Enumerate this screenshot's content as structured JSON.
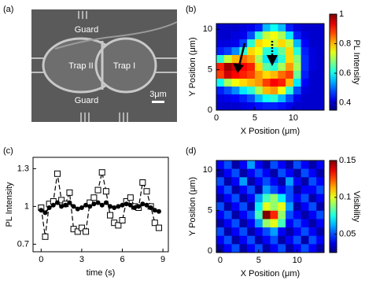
{
  "chart_data": [
    {
      "type": "image",
      "panel_label": "(a)",
      "annotations": [
        "Guard",
        "Trap II",
        "Trap I",
        "Guard",
        "3μm"
      ]
    },
    {
      "type": "heatmap",
      "panel_label": "(b)",
      "xlabel": "X Position (μm)",
      "ylabel": "Y Position (μm)",
      "colorbar_label": "PL Intensity",
      "xlim": [
        0,
        14
      ],
      "ylim": [
        0,
        10.7
      ],
      "xticks": [
        0,
        5,
        10
      ],
      "yticks": [
        0,
        5,
        10
      ],
      "clim": [
        0.35,
        1.0
      ],
      "cticks": [
        0.4,
        0.6,
        0.8,
        1
      ],
      "z": [
        [
          0.4,
          0.4,
          0.4,
          0.41,
          0.42,
          0.45,
          0.55,
          0.6,
          0.55,
          0.45,
          0.41,
          0.4,
          0.4,
          0.4
        ],
        [
          0.4,
          0.4,
          0.41,
          0.42,
          0.48,
          0.62,
          0.72,
          0.75,
          0.7,
          0.58,
          0.45,
          0.41,
          0.4,
          0.4
        ],
        [
          0.41,
          0.41,
          0.42,
          0.47,
          0.62,
          0.78,
          0.76,
          0.72,
          0.78,
          0.72,
          0.55,
          0.43,
          0.4,
          0.4
        ],
        [
          0.45,
          0.47,
          0.52,
          0.62,
          0.78,
          0.75,
          0.62,
          0.6,
          0.66,
          0.78,
          0.62,
          0.45,
          0.41,
          0.4
        ],
        [
          0.62,
          0.72,
          0.8,
          0.85,
          0.82,
          0.7,
          0.58,
          0.55,
          0.62,
          0.78,
          0.68,
          0.46,
          0.41,
          0.4
        ],
        [
          0.9,
          0.98,
          0.95,
          0.92,
          0.9,
          0.78,
          0.65,
          0.62,
          0.7,
          0.82,
          0.7,
          0.46,
          0.41,
          0.4
        ],
        [
          0.88,
          0.95,
          0.92,
          0.9,
          0.88,
          0.82,
          0.78,
          0.8,
          0.85,
          0.88,
          0.66,
          0.45,
          0.4,
          0.4
        ],
        [
          0.6,
          0.7,
          0.75,
          0.78,
          0.8,
          0.82,
          0.88,
          0.92,
          0.9,
          0.8,
          0.58,
          0.43,
          0.4,
          0.4
        ],
        [
          0.45,
          0.48,
          0.52,
          0.58,
          0.62,
          0.7,
          0.8,
          0.82,
          0.75,
          0.62,
          0.48,
          0.41,
          0.4,
          0.4
        ],
        [
          0.41,
          0.42,
          0.43,
          0.45,
          0.48,
          0.55,
          0.6,
          0.62,
          0.55,
          0.48,
          0.42,
          0.4,
          0.4,
          0.4
        ],
        [
          0.4,
          0.4,
          0.4,
          0.41,
          0.42,
          0.44,
          0.45,
          0.45,
          0.44,
          0.42,
          0.4,
          0.4,
          0.4,
          0.4
        ]
      ]
    },
    {
      "type": "line",
      "panel_label": "(c)",
      "xlabel": "time (s)",
      "ylabel": "PL Intensity",
      "xlim": [
        -0.6,
        9.4
      ],
      "ylim": [
        0.64,
        1.39
      ],
      "xticks": [
        0,
        3,
        6,
        9
      ],
      "yticks": [
        0.7,
        1,
        1.3
      ],
      "x": [
        0,
        0.3,
        0.6,
        0.9,
        1.2,
        1.5,
        1.8,
        2.1,
        2.4,
        2.7,
        3,
        3.3,
        3.6,
        3.9,
        4.2,
        4.5,
        4.8,
        5.1,
        5.4,
        5.7,
        6,
        6.3,
        6.6,
        6.9,
        7.2,
        7.5,
        7.8,
        8.1,
        8.4,
        8.7
      ],
      "series": [
        {
          "color": "#000000",
          "marker": "square",
          "dashed": true,
          "values": [
            0.99,
            0.76,
            1.02,
            1.04,
            1.26,
            1.05,
            1.02,
            1.11,
            0.82,
            0.8,
            0.83,
            0.8,
            1.03,
            1.07,
            1.13,
            1.27,
            1.12,
            0.93,
            0.87,
            0.85,
            0.89,
            1.04,
            1.07,
            1.0,
            0.99,
            1.19,
            1.12,
            1.0,
            0.87,
            0.83
          ]
        },
        {
          "color": "#000000",
          "marker": "circle",
          "dashed": false,
          "values": [
            0.97,
            0.95,
            0.99,
            1.01,
            1.03,
            1.0,
            1.01,
            1.03,
            1.0,
            0.98,
            0.99,
            1.01,
            1.0,
            1.02,
            1.03,
            1.01,
            1.03,
            1.0,
            0.99,
            1.0,
            1.01,
            1.02,
            1.01,
            0.99,
            1.0,
            1.02,
            1.01,
            0.99,
            0.97,
            0.96
          ]
        }
      ]
    },
    {
      "type": "heatmap",
      "panel_label": "(d)",
      "xlabel": "X Position (μm)",
      "ylabel": "Y Position (μm)",
      "colorbar_label": "Visibility",
      "xlim": [
        -0.5,
        13.5
      ],
      "ylim": [
        -0.2,
        11.2
      ],
      "xticks": [
        0,
        5,
        10
      ],
      "yticks": [
        0,
        5,
        10
      ],
      "clim": [
        0.025,
        0.15
      ],
      "cticks": [
        0.05,
        0.1,
        0.15
      ],
      "z": [
        [
          0.04,
          0.05,
          0.03,
          0.04,
          0.06,
          0.04,
          0.03,
          0.05,
          0.04,
          0.03,
          0.05,
          0.04,
          0.03,
          0.04
        ],
        [
          0.03,
          0.04,
          0.05,
          0.03,
          0.04,
          0.05,
          0.04,
          0.03,
          0.05,
          0.04,
          0.03,
          0.05,
          0.04,
          0.03
        ],
        [
          0.05,
          0.03,
          0.04,
          0.06,
          0.03,
          0.04,
          0.05,
          0.04,
          0.03,
          0.06,
          0.04,
          0.03,
          0.05,
          0.04
        ],
        [
          0.04,
          0.05,
          0.03,
          0.04,
          0.05,
          0.03,
          0.06,
          0.05,
          0.04,
          0.05,
          0.03,
          0.04,
          0.04,
          0.05
        ],
        [
          0.03,
          0.04,
          0.05,
          0.03,
          0.04,
          0.06,
          0.08,
          0.09,
          0.07,
          0.05,
          0.04,
          0.05,
          0.03,
          0.04
        ],
        [
          0.05,
          0.03,
          0.04,
          0.05,
          0.03,
          0.07,
          0.1,
          0.09,
          0.1,
          0.06,
          0.03,
          0.04,
          0.05,
          0.03
        ],
        [
          0.04,
          0.05,
          0.03,
          0.04,
          0.05,
          0.08,
          0.15,
          0.13,
          0.09,
          0.05,
          0.04,
          0.03,
          0.04,
          0.05
        ],
        [
          0.03,
          0.04,
          0.05,
          0.03,
          0.04,
          0.06,
          0.09,
          0.1,
          0.08,
          0.04,
          0.05,
          0.04,
          0.03,
          0.04
        ],
        [
          0.05,
          0.03,
          0.04,
          0.05,
          0.03,
          0.04,
          0.05,
          0.06,
          0.04,
          0.03,
          0.04,
          0.05,
          0.04,
          0.03
        ],
        [
          0.04,
          0.05,
          0.03,
          0.04,
          0.05,
          0.03,
          0.04,
          0.05,
          0.03,
          0.04,
          0.05,
          0.03,
          0.05,
          0.04
        ],
        [
          0.03,
          0.04,
          0.05,
          0.03,
          0.04,
          0.05,
          0.03,
          0.04,
          0.05,
          0.03,
          0.04,
          0.05,
          0.04,
          0.03
        ]
      ]
    }
  ]
}
